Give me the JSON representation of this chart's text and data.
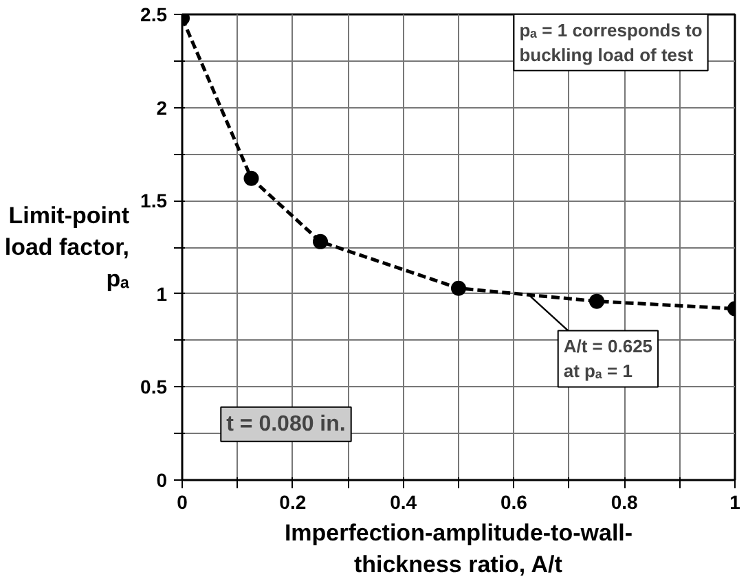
{
  "chart_data": {
    "type": "line",
    "xlabel": "Imperfection-amplitude-to-wall-thickness ratio, A/t",
    "ylabel": "Limit-point load factor, pₐ",
    "x": [
      0,
      0.125,
      0.25,
      0.5,
      0.75,
      1.0
    ],
    "series": [
      {
        "color": "#000000",
        "values": [
          2.48,
          1.62,
          1.28,
          1.03,
          0.96,
          0.92
        ]
      }
    ],
    "xlim": [
      0,
      1
    ],
    "ylim": [
      0,
      2.5
    ],
    "xticks": [
      0,
      {
        "value": 0.1,
        "label": null
      },
      0.2,
      {
        "value": 0.3,
        "label": null
      },
      0.4,
      {
        "value": 0.5,
        "label": null
      },
      0.6,
      {
        "value": 0.7,
        "label": null
      },
      0.8,
      {
        "value": 0.9,
        "label": null
      },
      1
    ],
    "yticks": [
      0,
      {
        "value": 0.25,
        "label": null
      },
      0.5,
      {
        "value": 0.75,
        "label": null
      },
      1,
      {
        "value": 1.25,
        "label": null
      },
      1.5,
      {
        "value": 1.75,
        "label": null
      },
      2,
      {
        "value": 2.25,
        "label": null
      },
      2.5
    ],
    "grid": true,
    "marker": "circle",
    "line_style": "dashed",
    "annotations": [
      "pₐ = 1 corresponds to buckling load of test",
      "t = 0.080 in.",
      {
        "text": "A/t = 0.625 at pₐ = 1",
        "x": 0.625,
        "y": 1
      }
    ]
  }
}
